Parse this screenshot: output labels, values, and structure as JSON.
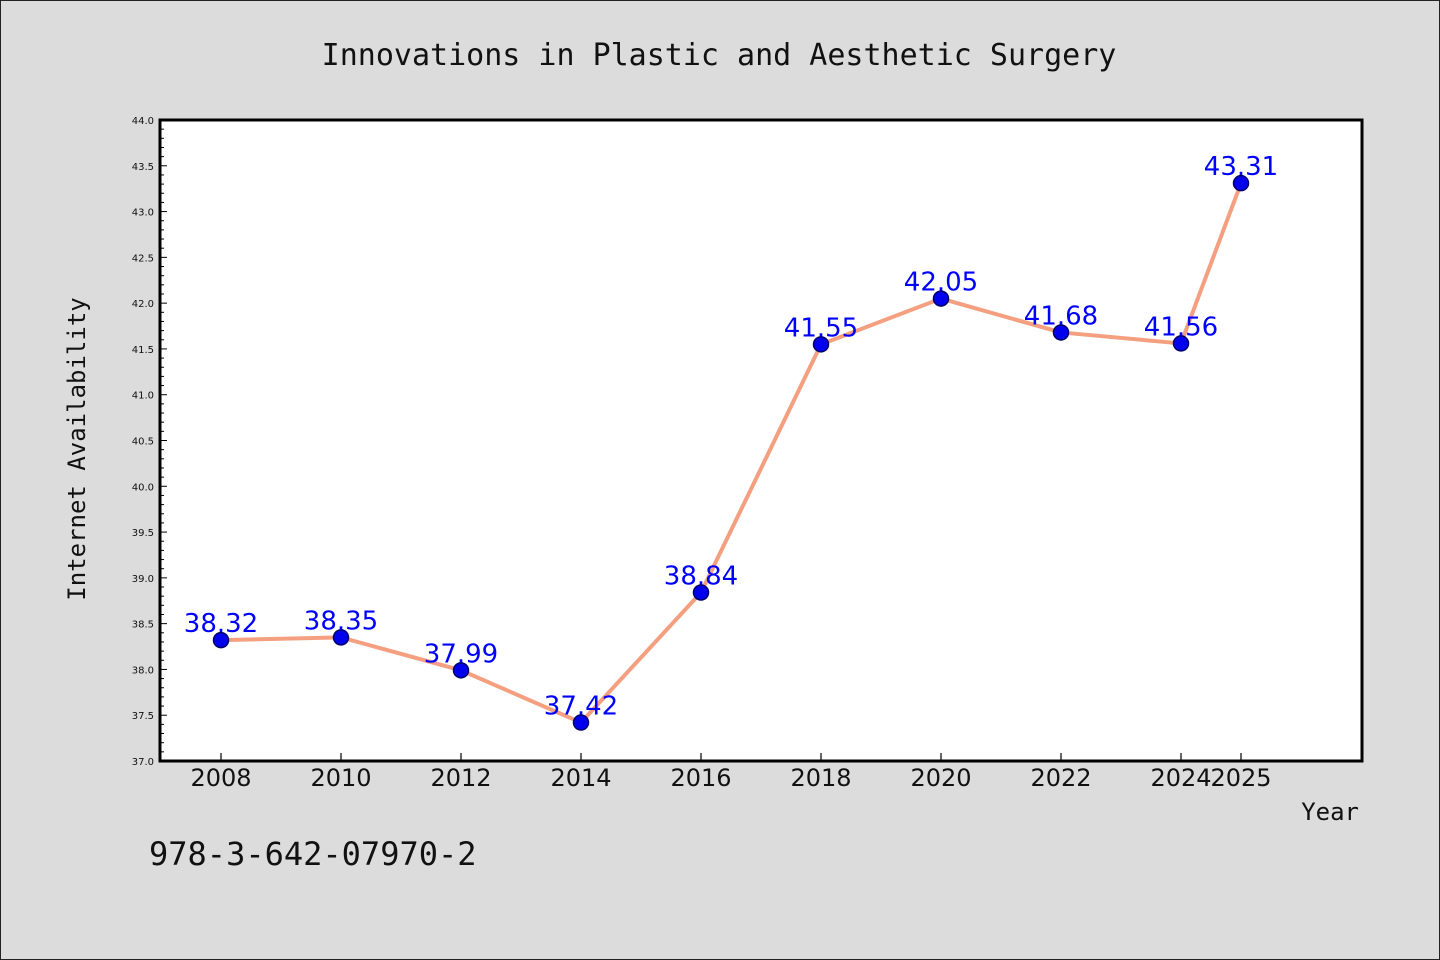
{
  "chart_data": {
    "type": "line",
    "title": "Innovations in Plastic and Aesthetic Surgery",
    "xlabel": "Year",
    "ylabel": "Internet Availability",
    "categories": [
      "2008",
      "2010",
      "2012",
      "2014",
      "2016",
      "2018",
      "2020",
      "2022",
      "2024",
      "2025"
    ],
    "series": [
      {
        "values": [
          38.32,
          38.35,
          37.99,
          37.42,
          38.84,
          41.55,
          42.05,
          41.68,
          41.56,
          43.31
        ],
        "data_labels": [
          "38.32",
          "38.35",
          "37.99",
          "37.42",
          "38.84",
          "41.55",
          "42.05",
          "41.68",
          "41.56",
          "43.31"
        ]
      }
    ],
    "ylim": [
      37.0,
      44.0
    ],
    "yticks": [
      "37.0",
      "37.5",
      "38.0",
      "38.5",
      "39.0",
      "39.5",
      "40.0",
      "40.5",
      "41.0",
      "41.5",
      "42.0",
      "42.5",
      "43.0",
      "43.5",
      "44.0"
    ],
    "grid": false,
    "legend": "none",
    "colors": {
      "line": "#f4a080",
      "marker": "#0000ee",
      "marker_edge": "#000066",
      "data_label": "#0000ff",
      "background": "#dcdcdc",
      "plot_background": "#ffffff"
    }
  },
  "footer": {
    "isbn": "978-3-642-07970-2"
  }
}
